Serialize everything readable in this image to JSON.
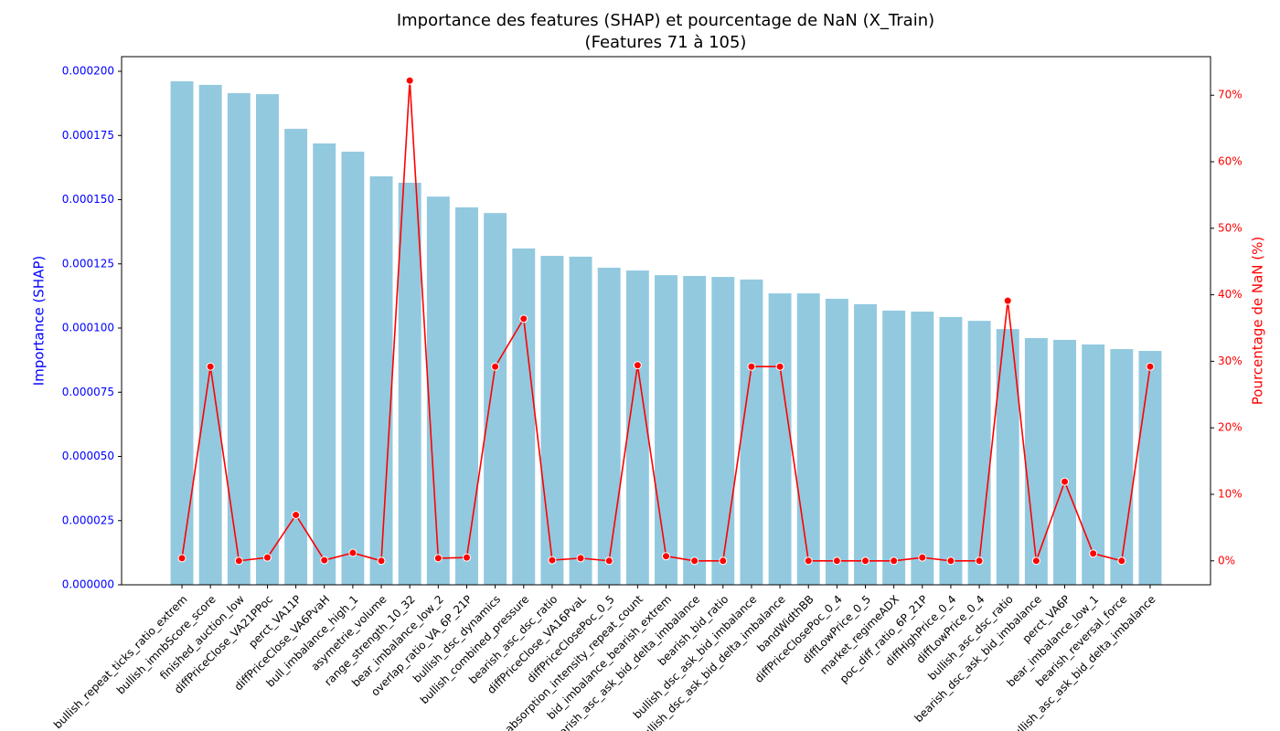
{
  "chart_data": {
    "type": "bar",
    "title": "Importance des features (SHAP) et pourcentage de NaN (X_Train)",
    "subtitle": "(Features 71 à 105)",
    "y_label": "Importance (SHAP)",
    "y2_label": "Pourcentage de NaN (%)",
    "categories": [
      "bullish_repeat_ticks_ratio_extrem",
      "bullish_imnbScore_score",
      "finished_auction_low",
      "diffPriceClose_VA21PPoc",
      "perct_VA11P",
      "diffPriceClose_VA6PvaH",
      "bull_imbalance_high_1",
      "asymetrie_volume",
      "range_strength_10_32",
      "bear_imbalance_low_2",
      "overlap_ratio_VA_6P_21P",
      "bullish_dsc_dynamics",
      "bullish_combined_pressure",
      "bearish_asc_dsc_ratio",
      "diffPriceClose_VA16PvaL",
      "diffPriceClosePoc_0_5",
      "absorption_intensity_repeat_count",
      "bid_imbalance_bearish_extrem",
      "bearish_asc_ask_bid_delta_imbalance",
      "bearish_bid_ratio",
      "bullish_dsc_ask_bid_imbalance",
      "bullish_dsc_ask_bid_delta_imbalance",
      "bandWidthBB",
      "diffPriceClosePoc_0_4",
      "diffLowPrice_0_5",
      "market_regimeADX",
      "poc_diff_ratio_6P_21P",
      "diffHighPrice_0_4",
      "diffLowPrice_0_4",
      "bullish_asc_dsc_ratio",
      "bearish_dsc_ask_bid_imbalance",
      "perct_VA6P",
      "bear_imbalance_low_1",
      "bearish_reversal_force",
      "bullish_asc_ask_bid_delta_imbalance"
    ],
    "series": [
      {
        "type": "bar",
        "color": "#92c9df",
        "values": [
          0.0001961,
          0.0001947,
          0.0001915,
          0.0001911,
          0.0001776,
          0.0001719,
          0.0001687,
          0.0001591,
          0.0001566,
          0.0001512,
          0.000147,
          0.0001448,
          0.000131,
          0.0001281,
          0.0001278,
          0.0001235,
          0.0001224,
          0.0001206,
          0.0001203,
          0.0001199,
          0.0001189,
          0.0001135,
          0.0001135,
          0.0001114,
          0.0001093,
          0.0001068,
          0.0001064,
          0.0001043,
          0.0001028,
          9.96e-05,
          9.61e-05,
          9.54e-05,
          9.36e-05,
          9.18e-05,
          9.11e-05
        ]
      },
      {
        "type": "line",
        "axis": "y2",
        "color": "#ff0000",
        "values": [
          0.4,
          29.2,
          0,
          0.5,
          6.9,
          0.1,
          1.2,
          0,
          72.2,
          0.4,
          0.5,
          29.2,
          36.4,
          0.1,
          0.4,
          0,
          29.4,
          0.7,
          0,
          0,
          29.2,
          29.2,
          0,
          0,
          0,
          0,
          0.5,
          0,
          0,
          39.1,
          0,
          11.9,
          1.1,
          0,
          29.2
        ]
      }
    ],
    "ylim": [
      0,
      0.0002057
    ],
    "yticks": [
      {
        "value": 0,
        "label": "0.000000"
      },
      {
        "value": 2.5e-05,
        "label": "0.000025"
      },
      {
        "value": 5e-05,
        "label": "0.000050"
      },
      {
        "value": 7.5e-05,
        "label": "0.000075"
      },
      {
        "value": 0.0001,
        "label": "0.000100"
      },
      {
        "value": 0.000125,
        "label": "0.000125"
      },
      {
        "value": 0.00015,
        "label": "0.000150"
      },
      {
        "value": 0.000175,
        "label": "0.000175"
      },
      {
        "value": 0.0002,
        "label": "0.000200"
      }
    ],
    "y_color": "#0000ff",
    "y2lim": [
      -3.6,
      75.8
    ],
    "y2ticks": [
      {
        "value": 0,
        "label": "0%"
      },
      {
        "value": 10,
        "label": "10%"
      },
      {
        "value": 20,
        "label": "20%"
      },
      {
        "value": 30,
        "label": "30%"
      },
      {
        "value": 40,
        "label": "40%"
      },
      {
        "value": 50,
        "label": "50%"
      },
      {
        "value": 60,
        "label": "60%"
      },
      {
        "value": 70,
        "label": "70%"
      }
    ],
    "y2_color": "#ff0000"
  }
}
